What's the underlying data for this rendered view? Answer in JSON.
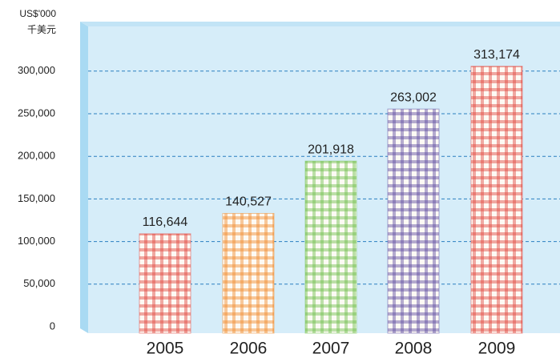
{
  "chart_data": {
    "type": "bar",
    "y_unit_labels": [
      "US$'000",
      "千美元"
    ],
    "categories": [
      "2005",
      "2006",
      "2007",
      "2008",
      "2009"
    ],
    "values": [
      116644,
      140527,
      201918,
      263002,
      313174
    ],
    "value_labels": [
      "116,644",
      "140,527",
      "201,918",
      "263,002",
      "313,174"
    ],
    "colors": [
      "#e0443c",
      "#f08a2a",
      "#6cbf4a",
      "#5a4aa0",
      "#e0443c"
    ],
    "ylim": [
      0,
      350000
    ],
    "yticks": [
      0,
      {
        "value": 50000,
        "label": "50,000"
      },
      {
        "value": 100000,
        "label": "100,000"
      },
      {
        "value": 150000,
        "label": "150,000"
      },
      {
        "value": 200000,
        "label": "200,000"
      },
      {
        "value": 250000,
        "label": "250,000"
      },
      {
        "value": 300000,
        "label": "300,000"
      }
    ],
    "grid": true
  }
}
